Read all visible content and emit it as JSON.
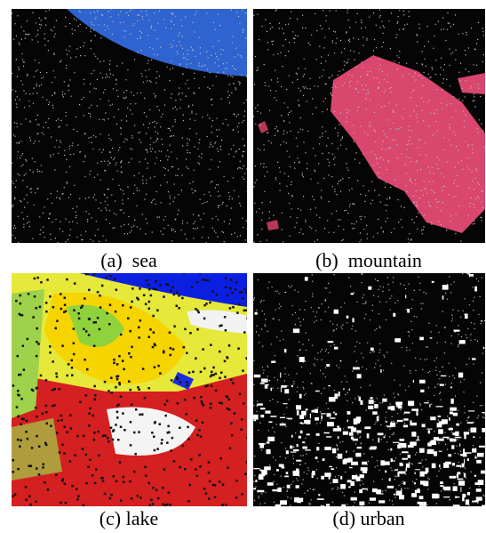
{
  "panels": [
    {
      "caption": "(a)  sea"
    },
    {
      "caption": "(b)  mountain"
    },
    {
      "caption": "(c) lake"
    },
    {
      "caption": "(d) urban"
    }
  ]
}
